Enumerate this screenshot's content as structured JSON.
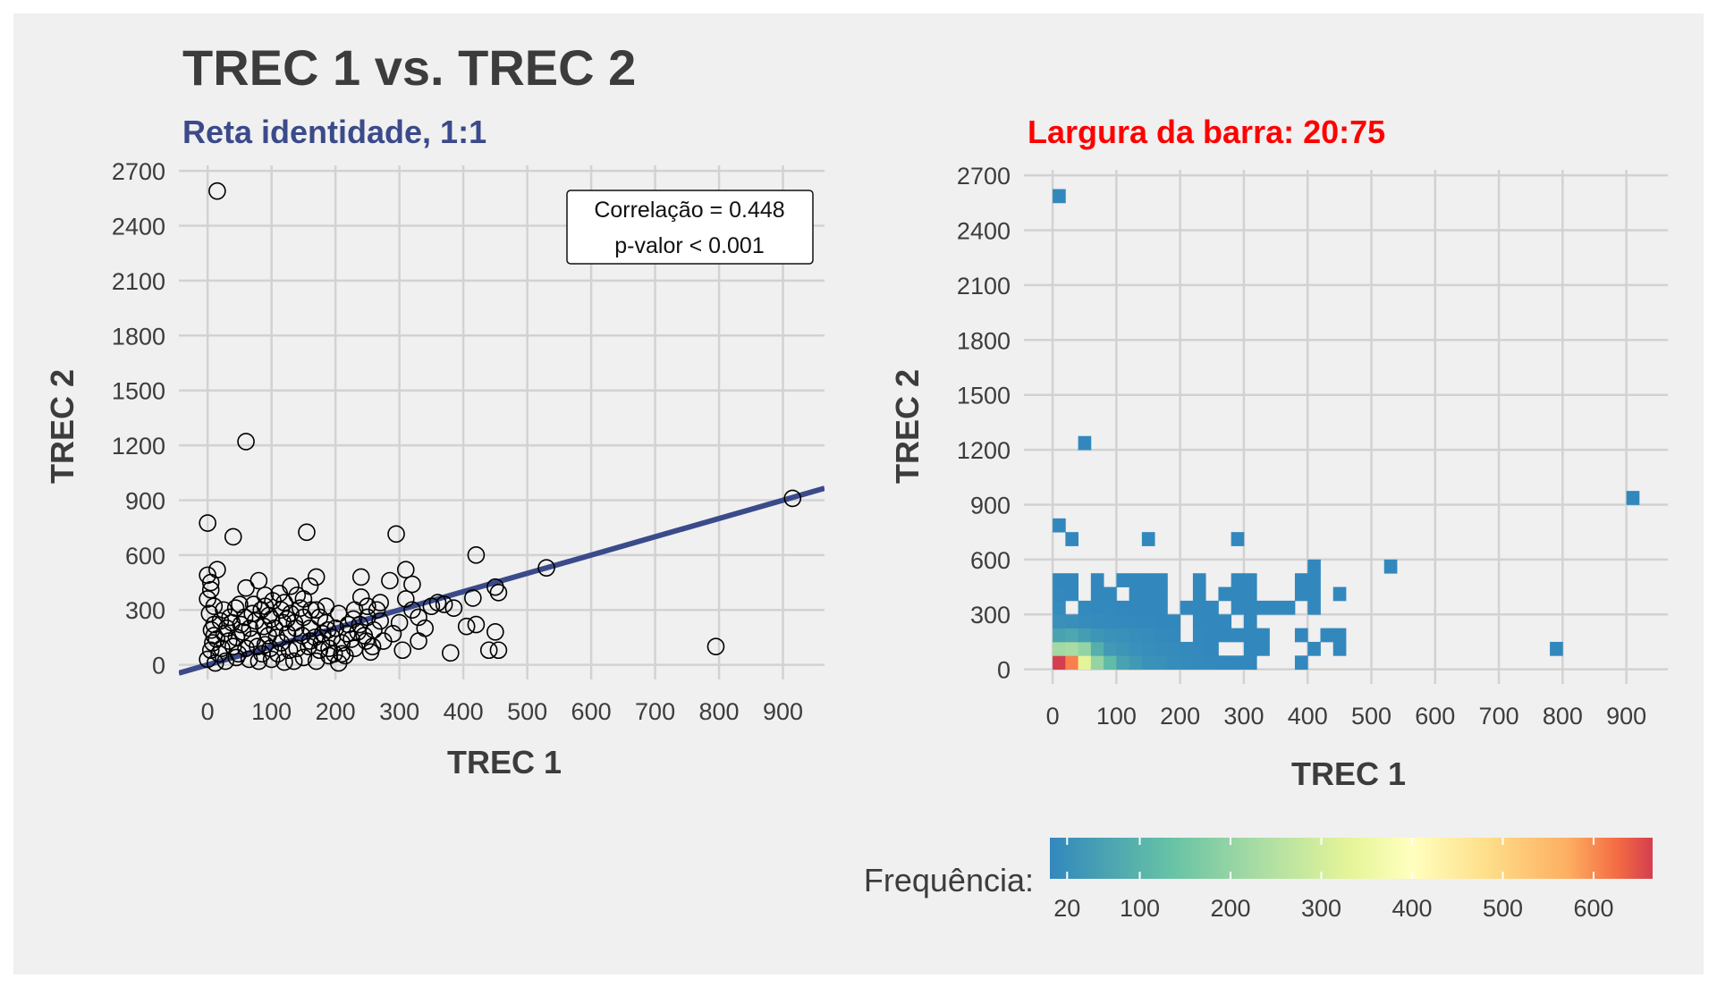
{
  "header": {
    "title": "TREC 1 vs. TREC 2"
  },
  "chart_data": [
    {
      "type": "scatter",
      "subtitle": "Reta identidade, 1:1",
      "subtitle_color": "#3b4a8a",
      "xlabel": "TREC 1",
      "ylabel": "TREC 2",
      "xlim": [
        -45,
        965
      ],
      "ylim": [
        -80,
        2730
      ],
      "xticks": [
        0,
        100,
        200,
        300,
        400,
        500,
        600,
        700,
        800,
        900
      ],
      "yticks": [
        0,
        300,
        600,
        900,
        1200,
        1500,
        1800,
        2100,
        2400,
        2700
      ],
      "grid": true,
      "identity_line": {
        "slope": 1,
        "intercept": 0,
        "color": "#3b4a8a"
      },
      "annotation": [
        "Correlação = 0.448",
        "p-valor < 0.001"
      ],
      "points": [
        [
          15,
          2590
        ],
        [
          60,
          1220
        ],
        [
          0,
          775
        ],
        [
          40,
          700
        ],
        [
          155,
          725
        ],
        [
          295,
          715
        ],
        [
          915,
          910
        ],
        [
          795,
          100
        ],
        [
          530,
          530
        ],
        [
          420,
          600
        ],
        [
          450,
          425
        ],
        [
          455,
          395
        ],
        [
          415,
          365
        ],
        [
          440,
          80
        ],
        [
          450,
          180
        ],
        [
          455,
          80
        ],
        [
          380,
          65
        ],
        [
          420,
          220
        ],
        [
          405,
          210
        ],
        [
          385,
          310
        ],
        [
          350,
          320
        ],
        [
          330,
          130
        ],
        [
          340,
          200
        ],
        [
          305,
          80
        ],
        [
          310,
          520
        ],
        [
          310,
          360
        ],
        [
          320,
          440
        ],
        [
          285,
          460
        ],
        [
          240,
          480
        ],
        [
          240,
          370
        ],
        [
          265,
          300
        ],
        [
          250,
          260
        ],
        [
          270,
          240
        ],
        [
          255,
          70
        ],
        [
          215,
          50
        ],
        [
          205,
          10
        ],
        [
          170,
          480
        ],
        [
          160,
          430
        ],
        [
          170,
          300
        ],
        [
          15,
          520
        ],
        [
          0,
          490
        ],
        [
          5,
          450
        ],
        [
          5,
          410
        ],
        [
          0,
          360
        ],
        [
          10,
          320
        ],
        [
          25,
          300
        ],
        [
          60,
          420
        ],
        [
          80,
          460
        ],
        [
          90,
          380
        ],
        [
          120,
          340
        ],
        [
          130,
          430
        ],
        [
          130,
          280
        ],
        [
          100,
          250
        ],
        [
          90,
          320
        ],
        [
          75,
          240
        ],
        [
          105,
          200
        ],
        [
          140,
          380
        ],
        [
          150,
          360
        ],
        [
          175,
          260
        ],
        [
          185,
          230
        ],
        [
          195,
          150
        ],
        [
          210,
          120
        ],
        [
          225,
          140
        ],
        [
          235,
          180
        ],
        [
          220,
          220
        ],
        [
          200,
          200
        ],
        [
          160,
          130
        ],
        [
          150,
          40
        ],
        [
          135,
          20
        ],
        [
          110,
          60
        ],
        [
          90,
          110
        ],
        [
          60,
          90
        ],
        [
          45,
          150
        ],
        [
          30,
          200
        ],
        [
          20,
          240
        ],
        [
          10,
          160
        ],
        [
          5,
          80
        ],
        [
          0,
          30
        ],
        [
          8,
          120
        ],
        [
          18,
          60
        ],
        [
          28,
          20
        ],
        [
          40,
          100
        ],
        [
          55,
          180
        ],
        [
          70,
          140
        ],
        [
          85,
          60
        ],
        [
          95,
          160
        ],
        [
          115,
          120
        ],
        [
          125,
          170
        ],
        [
          140,
          90
        ],
        [
          160,
          200
        ],
        [
          180,
          170
        ],
        [
          175,
          80
        ],
        [
          190,
          90
        ],
        [
          230,
          90
        ],
        [
          245,
          160
        ],
        [
          260,
          190
        ],
        [
          275,
          130
        ],
        [
          290,
          170
        ],
        [
          300,
          230
        ],
        [
          320,
          300
        ],
        [
          330,
          260
        ],
        [
          360,
          340
        ],
        [
          370,
          330
        ],
        [
          270,
          340
        ],
        [
          250,
          320
        ],
        [
          230,
          300
        ],
        [
          205,
          280
        ],
        [
          185,
          320
        ],
        [
          145,
          310
        ],
        [
          115,
          300
        ],
        [
          70,
          280
        ],
        [
          50,
          330
        ],
        [
          35,
          260
        ],
        [
          10,
          220
        ],
        [
          45,
          40
        ],
        [
          65,
          30
        ],
        [
          80,
          20
        ],
        [
          100,
          30
        ],
        [
          120,
          15
        ],
        [
          170,
          20
        ],
        [
          190,
          50
        ],
        [
          210,
          60
        ],
        [
          12,
          10
        ],
        [
          22,
          90
        ],
        [
          33,
          130
        ],
        [
          48,
          60
        ],
        [
          52,
          220
        ],
        [
          66,
          200
        ],
        [
          78,
          100
        ],
        [
          88,
          210
        ],
        [
          98,
          90
        ],
        [
          108,
          150
        ],
        [
          118,
          230
        ],
        [
          128,
          80
        ],
        [
          138,
          200
        ],
        [
          148,
          160
        ],
        [
          158,
          100
        ],
        [
          168,
          150
        ],
        [
          178,
          120
        ],
        [
          188,
          190
        ],
        [
          198,
          60
        ],
        [
          218,
          170
        ],
        [
          228,
          250
        ],
        [
          238,
          220
        ],
        [
          248,
          130
        ],
        [
          258,
          100
        ],
        [
          3,
          280
        ],
        [
          6,
          190
        ],
        [
          14,
          140
        ],
        [
          26,
          170
        ],
        [
          38,
          230
        ],
        [
          44,
          310
        ],
        [
          58,
          260
        ],
        [
          72,
          330
        ],
        [
          84,
          300
        ],
        [
          96,
          270
        ],
        [
          102,
          350
        ],
        [
          112,
          390
        ],
        [
          124,
          250
        ],
        [
          136,
          230
        ],
        [
          150,
          260
        ],
        [
          162,
          300
        ]
      ]
    },
    {
      "type": "heatmap",
      "subtitle": "Largura da barra: 20:75",
      "subtitle_color": "#ff0000",
      "xlabel": "TREC 1",
      "ylabel": "TREC 2",
      "xlim": [
        -45,
        965
      ],
      "ylim": [
        -80,
        2730
      ],
      "xticks": [
        0,
        100,
        200,
        300,
        400,
        500,
        600,
        700,
        800,
        900
      ],
      "yticks": [
        0,
        300,
        600,
        900,
        1200,
        1500,
        1800,
        2100,
        2400,
        2700
      ],
      "grid": true,
      "bin_width": [
        20,
        75
      ],
      "legend": {
        "title": "Frequência:",
        "position": "bottom",
        "range": [
          1,
          665
        ],
        "ticks": [
          20,
          100,
          200,
          300,
          400,
          500,
          600
        ]
      },
      "cells": [
        [
          0,
          0,
          665
        ],
        [
          20,
          0,
          610
        ],
        [
          40,
          0,
          330
        ],
        [
          60,
          0,
          200
        ],
        [
          80,
          0,
          120
        ],
        [
          100,
          0,
          60
        ],
        [
          120,
          0,
          40
        ],
        [
          140,
          0,
          25
        ],
        [
          160,
          0,
          20
        ],
        [
          180,
          0,
          12
        ],
        [
          200,
          0,
          8
        ],
        [
          220,
          0,
          5
        ],
        [
          240,
          0,
          3
        ],
        [
          260,
          0,
          2
        ],
        [
          280,
          0,
          2
        ],
        [
          300,
          0,
          1
        ],
        [
          380,
          0,
          1
        ],
        [
          0,
          75,
          220
        ],
        [
          20,
          75,
          230
        ],
        [
          40,
          75,
          200
        ],
        [
          60,
          75,
          90
        ],
        [
          80,
          75,
          40
        ],
        [
          100,
          75,
          30
        ],
        [
          120,
          75,
          20
        ],
        [
          140,
          75,
          15
        ],
        [
          160,
          75,
          12
        ],
        [
          180,
          75,
          8
        ],
        [
          200,
          75,
          5
        ],
        [
          220,
          75,
          3
        ],
        [
          240,
          75,
          2
        ],
        [
          300,
          75,
          1
        ],
        [
          320,
          75,
          1
        ],
        [
          400,
          75,
          1
        ],
        [
          440,
          75,
          1
        ],
        [
          780,
          75,
          1
        ],
        [
          0,
          150,
          60
        ],
        [
          20,
          150,
          70
        ],
        [
          40,
          150,
          50
        ],
        [
          60,
          150,
          30
        ],
        [
          80,
          150,
          25
        ],
        [
          100,
          150,
          20
        ],
        [
          120,
          150,
          15
        ],
        [
          140,
          150,
          10
        ],
        [
          160,
          150,
          6
        ],
        [
          180,
          150,
          4
        ],
        [
          220,
          150,
          3
        ],
        [
          240,
          150,
          2
        ],
        [
          260,
          150,
          2
        ],
        [
          280,
          150,
          1
        ],
        [
          300,
          150,
          1
        ],
        [
          320,
          150,
          1
        ],
        [
          380,
          150,
          1
        ],
        [
          420,
          150,
          1
        ],
        [
          440,
          150,
          1
        ],
        [
          0,
          225,
          20
        ],
        [
          20,
          225,
          18
        ],
        [
          40,
          225,
          12
        ],
        [
          60,
          225,
          8
        ],
        [
          80,
          225,
          6
        ],
        [
          100,
          225,
          5
        ],
        [
          120,
          225,
          4
        ],
        [
          140,
          225,
          3
        ],
        [
          160,
          225,
          2
        ],
        [
          180,
          225,
          2
        ],
        [
          220,
          225,
          1
        ],
        [
          240,
          225,
          1
        ],
        [
          260,
          225,
          1
        ],
        [
          300,
          225,
          1
        ],
        [
          0,
          300,
          8
        ],
        [
          40,
          300,
          5
        ],
        [
          60,
          300,
          3
        ],
        [
          80,
          300,
          3
        ],
        [
          100,
          300,
          2
        ],
        [
          120,
          300,
          2
        ],
        [
          140,
          300,
          2
        ],
        [
          160,
          300,
          1
        ],
        [
          200,
          300,
          1
        ],
        [
          220,
          300,
          1
        ],
        [
          240,
          300,
          1
        ],
        [
          280,
          300,
          1
        ],
        [
          300,
          300,
          1
        ],
        [
          320,
          300,
          1
        ],
        [
          340,
          300,
          1
        ],
        [
          360,
          300,
          1
        ],
        [
          400,
          300,
          1
        ],
        [
          0,
          375,
          3
        ],
        [
          20,
          375,
          2
        ],
        [
          60,
          375,
          1
        ],
        [
          80,
          375,
          1
        ],
        [
          120,
          375,
          1
        ],
        [
          140,
          375,
          1
        ],
        [
          160,
          375,
          1
        ],
        [
          220,
          375,
          1
        ],
        [
          260,
          375,
          1
        ],
        [
          280,
          375,
          1
        ],
        [
          300,
          375,
          1
        ],
        [
          380,
          375,
          1
        ],
        [
          400,
          375,
          1
        ],
        [
          440,
          375,
          1
        ],
        [
          0,
          450,
          2
        ],
        [
          20,
          450,
          1
        ],
        [
          60,
          450,
          1
        ],
        [
          100,
          450,
          1
        ],
        [
          120,
          450,
          1
        ],
        [
          140,
          450,
          1
        ],
        [
          160,
          450,
          1
        ],
        [
          220,
          450,
          1
        ],
        [
          280,
          450,
          1
        ],
        [
          300,
          450,
          1
        ],
        [
          380,
          450,
          1
        ],
        [
          400,
          450,
          1
        ],
        [
          400,
          525,
          1
        ],
        [
          520,
          525,
          1
        ],
        [
          20,
          675,
          1
        ],
        [
          140,
          675,
          1
        ],
        [
          280,
          675,
          1
        ],
        [
          0,
          750,
          1
        ],
        [
          900,
          900,
          1
        ],
        [
          40,
          1200,
          1
        ],
        [
          0,
          2550,
          1
        ]
      ]
    }
  ]
}
